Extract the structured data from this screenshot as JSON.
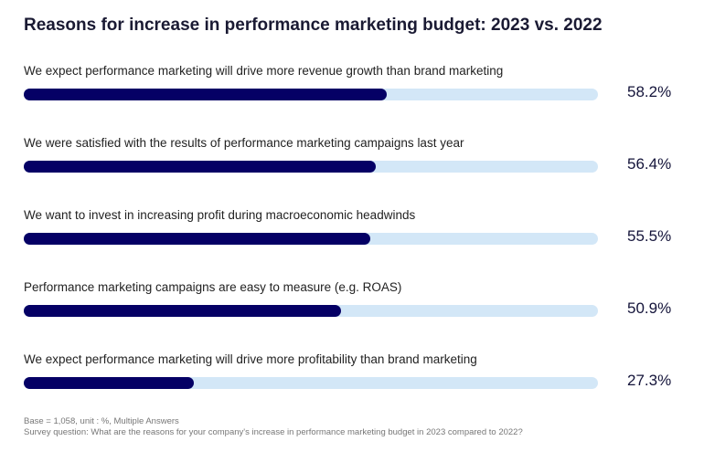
{
  "chart_data": {
    "type": "bar",
    "orientation": "horizontal",
    "title": "Reasons for increase in performance marketing budget: 2023 vs. 2022",
    "categories": [
      "We expect performance marketing will drive more revenue growth than brand marketing",
      "We were satisfied with the results of performance marketing campaigns last year",
      "We want to invest in increasing profit during macroeconomic headwinds",
      "Performance marketing campaigns are easy to measure (e.g. ROAS)",
      "We expect performance marketing will drive more profitability than brand marketing"
    ],
    "values": [
      58.2,
      56.4,
      55.5,
      50.9,
      27.3
    ],
    "value_labels": [
      "58.2%",
      "56.4%",
      "55.5%",
      "50.9%",
      "27.3%"
    ],
    "xlim": [
      0,
      92
    ],
    "colors": {
      "fill": "#050065",
      "track": "#d3e7f7"
    }
  },
  "footer": {
    "base": "Base = 1,058, unit : %, Multiple Answers",
    "question": "Survey question: What are the reasons for your company's increase in performance marketing budget in 2023 compared to 2022?"
  }
}
